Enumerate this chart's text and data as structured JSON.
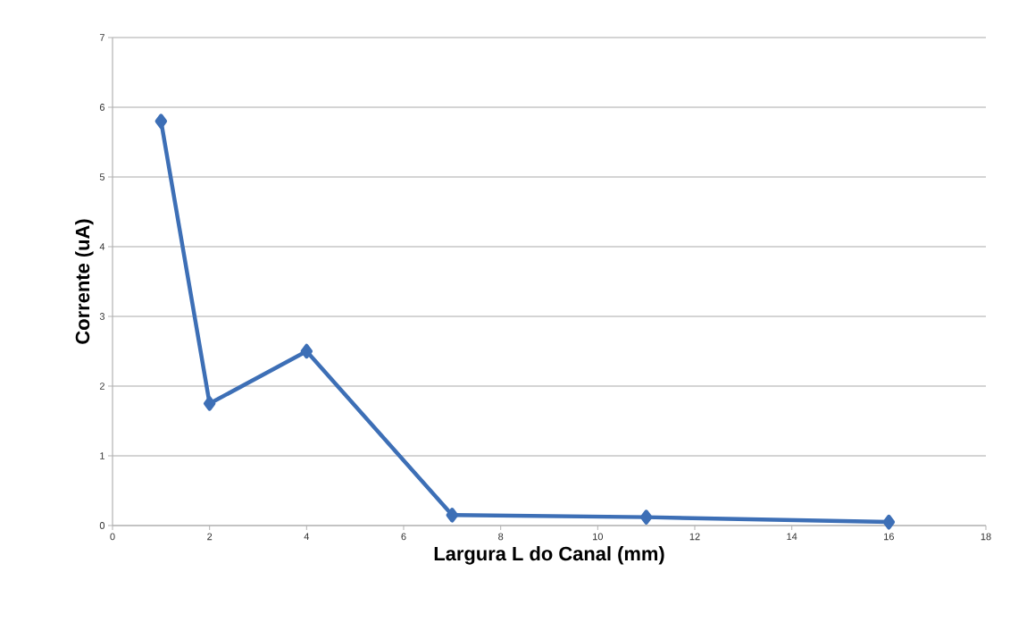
{
  "chart_data": {
    "type": "line",
    "xlabel": "Largura L do Canal (mm)",
    "ylabel": "Corrente (uA)",
    "x": [
      1,
      2,
      4,
      7,
      11,
      16
    ],
    "series": [
      {
        "color": "#3d6fb6",
        "values": [
          5.8,
          1.75,
          2.5,
          0.15,
          0.12,
          0.05
        ]
      }
    ],
    "xlim": [
      0,
      18
    ],
    "xticks": [
      0,
      2,
      4,
      6,
      8,
      10,
      12,
      14,
      16,
      18
    ],
    "ylim": [
      0,
      7
    ],
    "yticks": [
      0,
      1,
      2,
      3,
      4,
      5,
      6,
      7
    ],
    "grid": "y",
    "marker": "diamond",
    "line_style": "solid"
  }
}
